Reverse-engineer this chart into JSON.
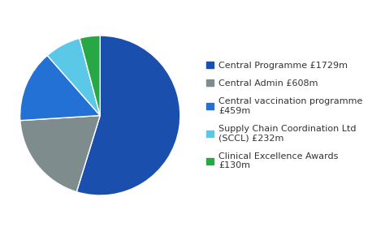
{
  "labels": [
    "Central Programme £1729m",
    "Central Admin £608m",
    "Central vaccination programme\n£459m",
    "Supply Chain Coordination Ltd\n(SCCL) £232m",
    "Clinical Excellence Awards\n£130m"
  ],
  "values": [
    1729,
    608,
    459,
    232,
    130
  ],
  "colors": [
    "#1b4fad",
    "#7f8c8d",
    "#2471d6",
    "#5bc8e8",
    "#27a844"
  ],
  "background_color": "#ffffff",
  "legend_fontsize": 8.0,
  "startangle": 90
}
